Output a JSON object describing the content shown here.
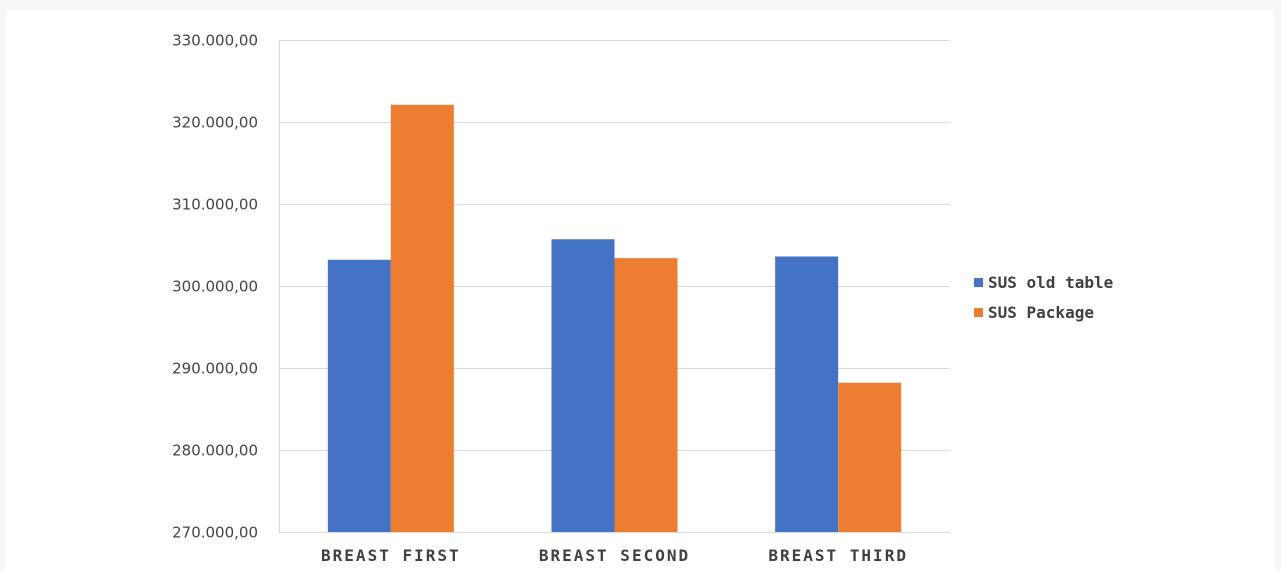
{
  "chart_data": {
    "type": "bar",
    "title": "",
    "xlabel": "",
    "ylabel": "",
    "categories": [
      "BREAST FIRST",
      "BREAST SECOND",
      "BREAST THIRD"
    ],
    "series": [
      {
        "name": "SUS old table",
        "color": "#4472c4",
        "values": [
          303200,
          305700,
          303600
        ]
      },
      {
        "name": "SUS Package",
        "color": "#ed7d31",
        "values": [
          322100,
          303400,
          288200
        ]
      }
    ],
    "ylim": [
      270000,
      330000
    ],
    "yticks": [
      270000,
      280000,
      290000,
      300000,
      310000,
      320000,
      330000
    ],
    "ytick_labels": [
      "270.000,00",
      "280.000,00",
      "290.000,00",
      "300.000,00",
      "310.000,00",
      "320.000,00",
      "330.000,00"
    ],
    "grid": true,
    "legend_position": "right"
  }
}
